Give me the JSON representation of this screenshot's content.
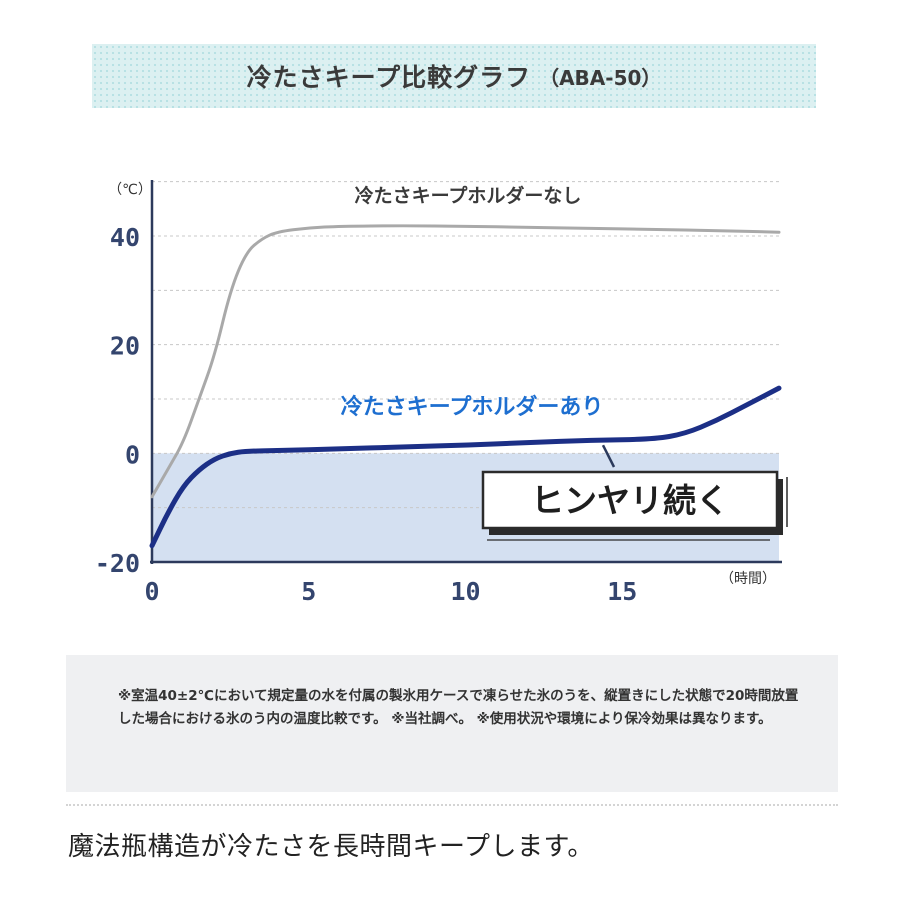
{
  "header": {
    "title": "冷たさキープ比較グラフ",
    "model": "（ABA-50）"
  },
  "chart_data": {
    "type": "line",
    "x_unit_label": "（時間）",
    "y_unit_label": "（℃）",
    "xlim": [
      0,
      20
    ],
    "ylim": [
      -20,
      40
    ],
    "x_ticks": [
      0,
      5,
      10,
      15
    ],
    "y_ticks": [
      -20,
      0,
      20,
      40
    ],
    "grid": "dashed horizontal",
    "shaded_region_below": 0,
    "series": [
      {
        "name": "冷たさキープホルダーなし",
        "color": "#a9a9a9",
        "points": [
          [
            0,
            -8
          ],
          [
            0.5,
            -3
          ],
          [
            1,
            2
          ],
          [
            1.5,
            10
          ],
          [
            2,
            18
          ],
          [
            2.5,
            30
          ],
          [
            3,
            37
          ],
          [
            3.5,
            39.5
          ],
          [
            4,
            40.8
          ],
          [
            5,
            41.5
          ],
          [
            6,
            41.8
          ],
          [
            8,
            41.9
          ],
          [
            10,
            41.8
          ],
          [
            12,
            41.6
          ],
          [
            14,
            41.4
          ],
          [
            16,
            41.2
          ],
          [
            18,
            41
          ],
          [
            20,
            40.7
          ]
        ]
      },
      {
        "name": "冷たさキープホルダーあり",
        "color": "#1c2f86",
        "points": [
          [
            0,
            -17
          ],
          [
            0.5,
            -11
          ],
          [
            1,
            -6
          ],
          [
            1.5,
            -3
          ],
          [
            2,
            -1
          ],
          [
            2.5,
            0
          ],
          [
            3,
            0.4
          ],
          [
            4,
            0.5
          ],
          [
            6,
            0.8
          ],
          [
            8,
            1.2
          ],
          [
            10,
            1.5
          ],
          [
            12,
            2
          ],
          [
            14,
            2.4
          ],
          [
            16,
            2.6
          ],
          [
            17,
            3.6
          ],
          [
            18,
            6
          ],
          [
            19,
            9
          ],
          [
            20,
            12
          ]
        ]
      }
    ],
    "annotations": {
      "label_without": "冷たさキープホルダーなし",
      "label_with": "冷たさキープホルダーあり",
      "callout": "ヒンヤリ続く"
    }
  },
  "note": "※室温40±2℃において規定量の水を付属の製氷用ケースで凍らせた氷のうを、縦置きにした状態で20時間放置した場合における氷のう内の温度比較です。 ※当社調べ。 ※使用状況や環境により保冷効果は異なります。",
  "caption": "魔法瓶構造が冷たさを長時間キープします。"
}
